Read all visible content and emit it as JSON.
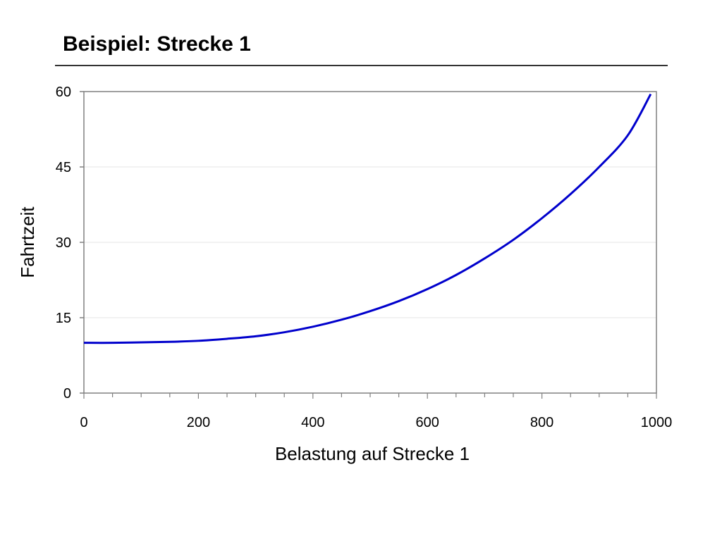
{
  "slide": {
    "title": "Beispiel: Strecke 1"
  },
  "chart_data": {
    "type": "line",
    "title": "",
    "xlabel": "Belastung auf Strecke 1",
    "ylabel": "Fahrtzeit",
    "xlim": [
      0,
      1000
    ],
    "ylim": [
      0,
      60
    ],
    "x_ticks": [
      0,
      200,
      400,
      600,
      800,
      1000
    ],
    "y_ticks": [
      0,
      15,
      30,
      45,
      60
    ],
    "x_tick_labels": [
      "0",
      "200",
      "400",
      "600",
      "800",
      "1000"
    ],
    "y_tick_labels": [
      "0",
      "15",
      "30",
      "45",
      "60"
    ],
    "grid": true,
    "legend": "none",
    "series": [
      {
        "color": "#0000cc",
        "x": [
          0,
          50,
          100,
          150,
          200,
          250,
          300,
          350,
          400,
          450,
          500,
          550,
          600,
          650,
          700,
          750,
          800,
          850,
          900,
          950,
          990
        ],
        "y": [
          10.0,
          10.0,
          10.1,
          10.2,
          10.4,
          10.8,
          11.3,
          12.1,
          13.2,
          14.6,
          16.3,
          18.3,
          20.7,
          23.5,
          26.8,
          30.5,
          34.8,
          39.6,
          45.0,
          51.3,
          59.5
        ]
      }
    ]
  }
}
